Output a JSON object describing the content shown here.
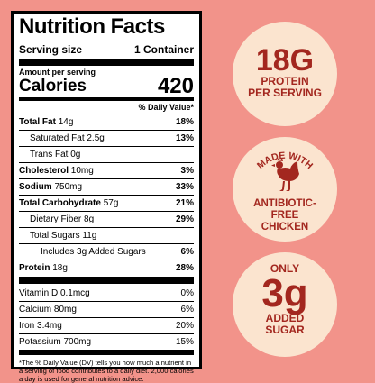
{
  "label": {
    "title": "Nutrition Facts",
    "serving_size_label": "Serving size",
    "serving_size_value": "1 Container",
    "amount_per_serving": "Amount per serving",
    "calories_label": "Calories",
    "calories_value": "420",
    "daily_value_header": "% Daily Value*",
    "nutrients": [
      {
        "name": "Total Fat",
        "amount": "14g",
        "dv": "18%"
      },
      {
        "name": "Saturated Fat",
        "amount": "2.5g",
        "dv": "13%"
      },
      {
        "name": "Trans Fat",
        "amount": "0g",
        "dv": ""
      },
      {
        "name": "Cholesterol",
        "amount": "10mg",
        "dv": "3%"
      },
      {
        "name": "Sodium",
        "amount": "750mg",
        "dv": "33%"
      },
      {
        "name": "Total Carbohydrate",
        "amount": "57g",
        "dv": "21%"
      },
      {
        "name": "Dietary Fiber",
        "amount": "8g",
        "dv": "29%"
      },
      {
        "name": "Total Sugars",
        "amount": "11g",
        "dv": ""
      },
      {
        "name": "Includes 3g Added Sugars",
        "amount": "",
        "dv": "6%"
      },
      {
        "name": "Protein",
        "amount": "18g",
        "dv": "28%"
      }
    ],
    "vitamins": [
      {
        "name": "Vitamin D",
        "amount": "0.1mcg",
        "dv": "0%"
      },
      {
        "name": "Calcium",
        "amount": "80mg",
        "dv": "6%"
      },
      {
        "name": "Iron",
        "amount": "3.4mg",
        "dv": "20%"
      },
      {
        "name": "Potassium",
        "amount": "700mg",
        "dv": "15%"
      }
    ],
    "footnote": "*The % Daily Value (DV) tells you how much a nutrient in a serving of food contributes to a daily diet. 2,000 calories a day is used for general nutrition advice."
  },
  "badges": {
    "protein": {
      "big": "18G",
      "line1": "PROTEIN",
      "line2": "PER SERVING"
    },
    "chicken": {
      "arc_text": "MADE WITH",
      "icon": "chicken-icon",
      "line1": "ANTIBIOTIC-",
      "line2": "FREE",
      "line3": "CHICKEN"
    },
    "sugar": {
      "top": "ONLY",
      "big": "3g",
      "line1": "ADDED",
      "line2": "SUGAR"
    }
  },
  "colors": {
    "background": "#f2938a",
    "badge_fill": "#fbe4cf",
    "badge_text": "#a3271f"
  }
}
